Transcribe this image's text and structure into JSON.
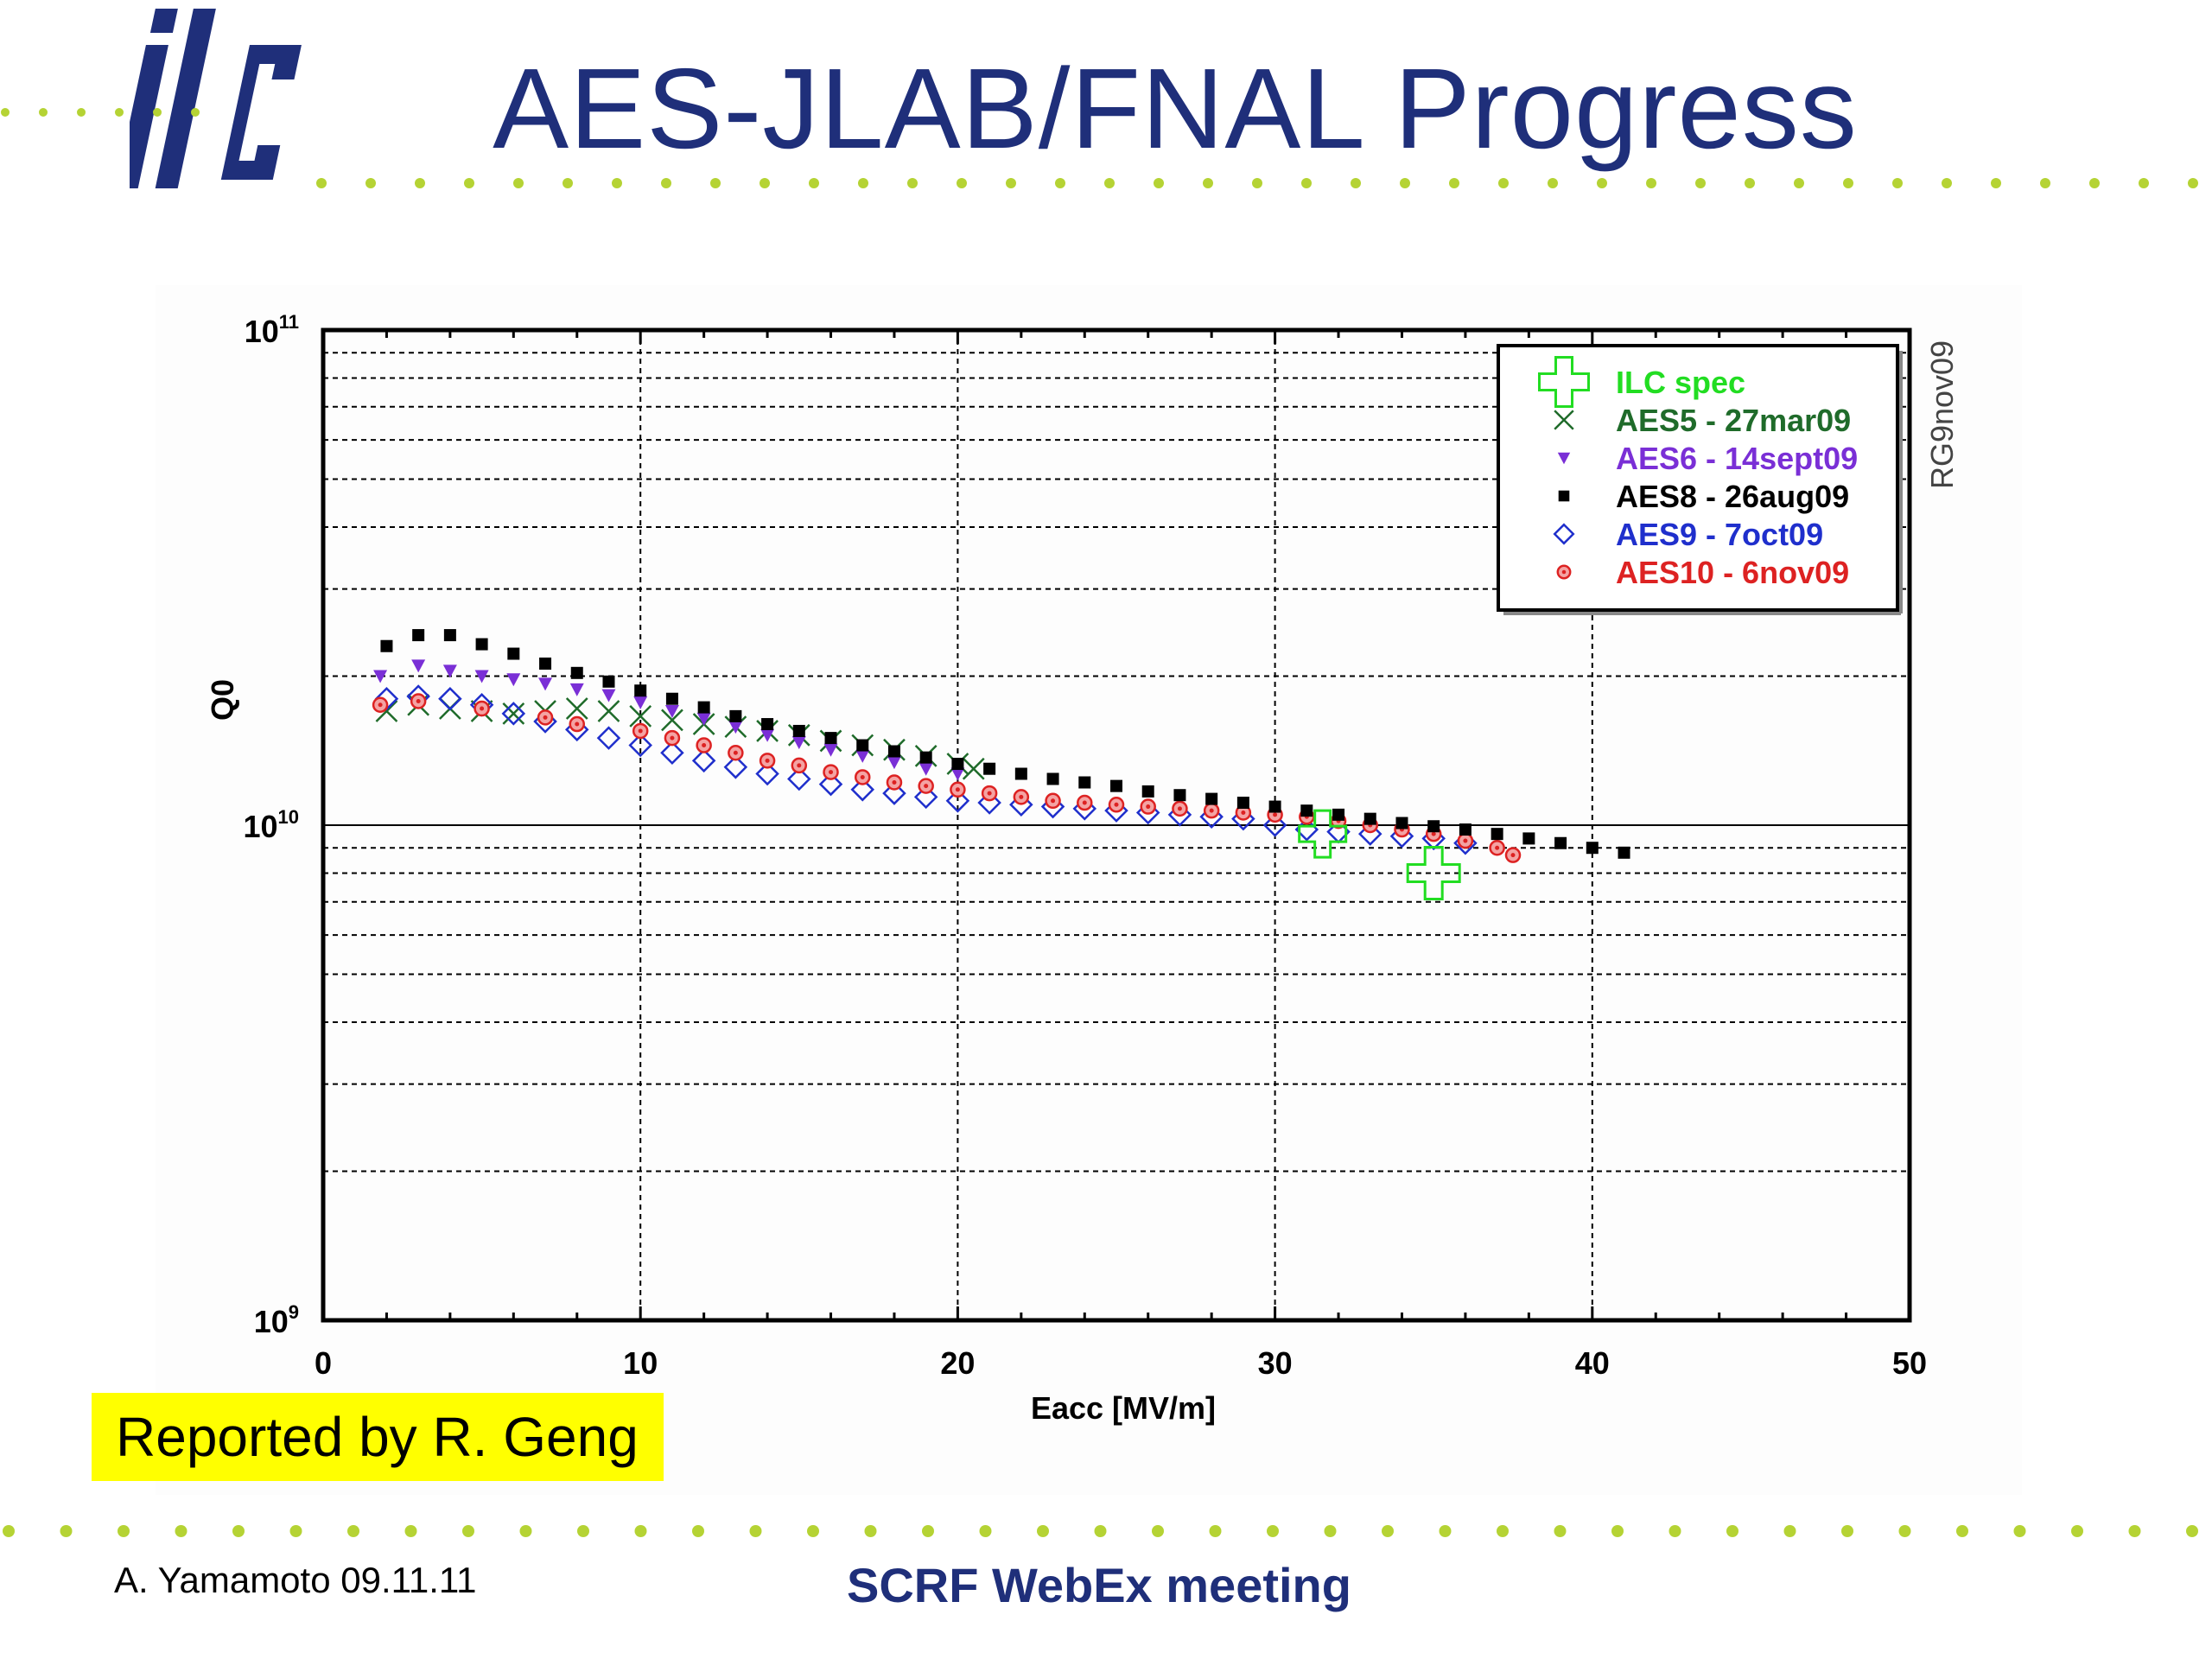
{
  "slide": {
    "logo_text": "ilc",
    "title": "AES-JLAB/FNAL Progress",
    "reported_by": "Reported by R. Geng",
    "footer_author": "A. Yamamoto 09.11.11",
    "footer_meeting": "SCRF WebEx meeting"
  },
  "colors": {
    "title": "#1f2f7a",
    "dots": "#b5d334",
    "highlight": "#ffff00"
  },
  "chart_data": {
    "type": "scatter",
    "title": "",
    "xlabel": "Eacc [MV/m]",
    "ylabel": "Q0",
    "xlim": [
      0,
      50
    ],
    "ylim": [
      1000000000.0,
      100000000000.0
    ],
    "yscale": "log",
    "x_ticks": [
      "0",
      "10",
      "20",
      "30",
      "40",
      "50"
    ],
    "y_ticks": [
      {
        "base": "10",
        "exp": "9"
      },
      {
        "base": "10",
        "exp": "10"
      },
      {
        "base": "10",
        "exp": "11"
      }
    ],
    "grid": true,
    "legend_position": "top-right",
    "side_label": "RG9nov09",
    "series": [
      {
        "name": "ILC spec",
        "color": "#22dd22",
        "marker": "cross-open",
        "x": [
          31.5,
          35
        ],
        "y": [
          9600000000.0,
          8000000000.0
        ]
      },
      {
        "name": "AES5 - 27mar09",
        "color": "#1f6b2a",
        "marker": "x",
        "x": [
          2,
          3,
          4,
          5,
          6,
          7,
          8,
          9,
          10,
          11,
          12,
          13,
          14,
          15,
          16,
          17,
          18,
          19,
          20,
          20.5
        ],
        "y": [
          17000000000.0,
          17500000000.0,
          17200000000.0,
          17000000000.0,
          16800000000.0,
          17000000000.0,
          17200000000.0,
          17000000000.0,
          16600000000.0,
          16300000000.0,
          16000000000.0,
          15800000000.0,
          15500000000.0,
          15200000000.0,
          14800000000.0,
          14500000000.0,
          14200000000.0,
          13800000000.0,
          13300000000.0,
          13000000000.0
        ]
      },
      {
        "name": "AES6 - 14sept09",
        "color": "#7a2fd6",
        "marker": "triangle-down",
        "x": [
          1.8,
          3,
          4,
          5,
          6,
          7,
          8,
          9,
          10,
          11,
          12,
          13,
          14,
          15,
          16,
          17,
          18,
          19,
          20
        ],
        "y": [
          20000000000.0,
          21000000000.0,
          20500000000.0,
          20000000000.0,
          19700000000.0,
          19300000000.0,
          18800000000.0,
          18300000000.0,
          17700000000.0,
          17000000000.0,
          16400000000.0,
          15800000000.0,
          15200000000.0,
          14700000000.0,
          14200000000.0,
          13800000000.0,
          13400000000.0,
          13000000000.0,
          12700000000.0
        ]
      },
      {
        "name": "AES8 - 26aug09",
        "color": "#000000",
        "marker": "square",
        "x": [
          2,
          3,
          4,
          5,
          6,
          7,
          8,
          9,
          10,
          11,
          12,
          13,
          14,
          15,
          16,
          17,
          18,
          19,
          20,
          21,
          22,
          23,
          24,
          25,
          26,
          27,
          28,
          29,
          30,
          31,
          32,
          33,
          34,
          35,
          36,
          37,
          38,
          39,
          40,
          41
        ],
        "y": [
          23000000000.0,
          24200000000.0,
          24200000000.0,
          23200000000.0,
          22200000000.0,
          21200000000.0,
          20300000000.0,
          19500000000.0,
          18700000000.0,
          18000000000.0,
          17300000000.0,
          16600000000.0,
          16000000000.0,
          15500000000.0,
          15000000000.0,
          14500000000.0,
          14100000000.0,
          13700000000.0,
          13300000000.0,
          13000000000.0,
          12700000000.0,
          12400000000.0,
          12200000000.0,
          12000000000.0,
          11700000000.0,
          11500000000.0,
          11300000000.0,
          11100000000.0,
          10900000000.0,
          10700000000.0,
          10500000000.0,
          10300000000.0,
          10100000000.0,
          9950000000.0,
          9800000000.0,
          9600000000.0,
          9400000000.0,
          9200000000.0,
          9000000000.0,
          8800000000.0
        ]
      },
      {
        "name": "AES9 - 7oct09",
        "color": "#1f2fcc",
        "marker": "diamond-open",
        "x": [
          2,
          3,
          4,
          5,
          6,
          7,
          8,
          9,
          10,
          11,
          12,
          13,
          14,
          15,
          16,
          17,
          18,
          19,
          20,
          21,
          22,
          23,
          24,
          25,
          26,
          27,
          28,
          29,
          30,
          31,
          32,
          33,
          34,
          35,
          36
        ],
        "y": [
          18000000000.0,
          18200000000.0,
          18000000000.0,
          17500000000.0,
          16800000000.0,
          16200000000.0,
          15600000000.0,
          15000000000.0,
          14500000000.0,
          14000000000.0,
          13500000000.0,
          13100000000.0,
          12700000000.0,
          12400000000.0,
          12100000000.0,
          11800000000.0,
          11600000000.0,
          11400000000.0,
          11200000000.0,
          11100000000.0,
          11000000000.0,
          10900000000.0,
          10800000000.0,
          10700000000.0,
          10600000000.0,
          10500000000.0,
          10400000000.0,
          10300000000.0,
          10000000000.0,
          9800000000.0,
          9700000000.0,
          9600000000.0,
          9500000000.0,
          9400000000.0,
          9200000000.0
        ]
      },
      {
        "name": "AES10 - 6nov09",
        "color": "#dd2222",
        "marker": "circle-dot",
        "x": [
          1.8,
          3,
          5,
          7,
          8,
          10,
          11,
          12,
          13,
          14,
          15,
          16,
          17,
          18,
          19,
          20,
          21,
          22,
          23,
          24,
          25,
          26,
          27,
          28,
          29,
          30,
          31,
          32,
          33,
          34,
          35,
          36,
          37,
          37.5
        ],
        "y": [
          17500000000.0,
          17800000000.0,
          17200000000.0,
          16500000000.0,
          16000000000.0,
          15500000000.0,
          15000000000.0,
          14500000000.0,
          14000000000.0,
          13500000000.0,
          13200000000.0,
          12800000000.0,
          12500000000.0,
          12200000000.0,
          12000000000.0,
          11800000000.0,
          11600000000.0,
          11400000000.0,
          11200000000.0,
          11100000000.0,
          11000000000.0,
          10900000000.0,
          10800000000.0,
          10700000000.0,
          10600000000.0,
          10500000000.0,
          10400000000.0,
          10200000000.0,
          10000000000.0,
          9800000000.0,
          9600000000.0,
          9300000000.0,
          9000000000.0,
          8700000000.0
        ]
      }
    ]
  }
}
